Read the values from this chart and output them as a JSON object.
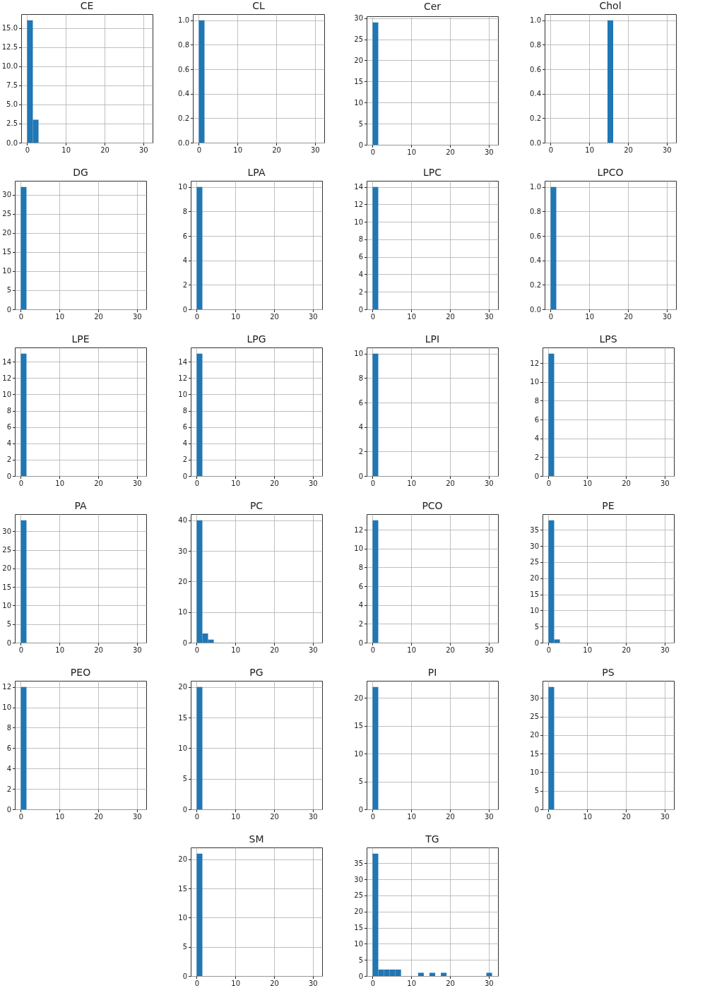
{
  "chart_data": [
    {
      "type": "histogram",
      "title": "CE",
      "bins": [
        0,
        1.47,
        2.94,
        4.41,
        5.88,
        7.35,
        8.82,
        10.29,
        11.76,
        13.23,
        14.7,
        16.17,
        17.64,
        19.11,
        20.58,
        22.05,
        23.52,
        24.99,
        26.46,
        27.93,
        29.4,
        30.87
      ],
      "values": [
        16,
        3,
        0,
        0,
        0,
        0,
        0,
        0,
        0,
        0,
        0,
        0,
        0,
        0,
        0,
        0,
        0,
        0,
        0,
        0,
        0
      ],
      "color": "#1f77b4",
      "xlim": [
        -1.54,
        32.41
      ],
      "xticks": [
        0,
        10,
        20,
        30
      ],
      "ylim": [
        0,
        16.8
      ],
      "yticks": [
        {
          "value": 0,
          "label": "0.0"
        },
        2.5,
        {
          "value": 5,
          "label": "5.0"
        },
        7.5,
        {
          "value": 10,
          "label": "10.0"
        },
        12.5,
        {
          "value": 15,
          "label": "15.0"
        }
      ],
      "grid": true
    },
    {
      "type": "histogram",
      "title": "CL",
      "bins": [
        0,
        1.47,
        2.94,
        4.41,
        5.88,
        7.35,
        8.82,
        10.29,
        11.76,
        13.23,
        14.7,
        16.17,
        17.64,
        19.11,
        20.58,
        22.05,
        23.52,
        24.99,
        26.46,
        27.93,
        29.4,
        30.87
      ],
      "values": [
        1,
        0,
        0,
        0,
        0,
        0,
        0,
        0,
        0,
        0,
        0,
        0,
        0,
        0,
        0,
        0,
        0,
        0,
        0,
        0,
        0
      ],
      "color": "#1f77b4",
      "xlim": [
        -1.54,
        32.41
      ],
      "xticks": [
        0,
        10,
        20,
        30
      ],
      "ylim": [
        0,
        1.05
      ],
      "yticks": [
        {
          "value": 0,
          "label": "0.0"
        },
        0.2,
        0.4,
        0.6,
        0.8,
        {
          "value": 1,
          "label": "1.0"
        }
      ],
      "grid": true
    },
    {
      "type": "histogram",
      "title": "Cer",
      "bins": [
        0,
        1.47,
        2.94,
        4.41,
        5.88,
        7.35,
        8.82,
        10.29,
        11.76,
        13.23,
        14.7,
        16.17,
        17.64,
        19.11,
        20.58,
        22.05,
        23.52,
        24.99,
        26.46,
        27.93,
        29.4,
        30.87
      ],
      "values": [
        29,
        0,
        0,
        0,
        0,
        0,
        0,
        0,
        0,
        0,
        0,
        0,
        0,
        0,
        0,
        0,
        0,
        0,
        0,
        0,
        0
      ],
      "color": "#1f77b4",
      "xlim": [
        -1.54,
        32.41
      ],
      "xticks": [
        0,
        10,
        20,
        30
      ],
      "ylim": [
        0,
        30.45
      ],
      "yticks": [
        0,
        5,
        10,
        15,
        20,
        25,
        30
      ],
      "grid": true
    },
    {
      "type": "histogram",
      "title": "Chol",
      "bins": [
        0,
        1.47,
        2.94,
        4.41,
        5.88,
        7.35,
        8.82,
        10.29,
        11.76,
        13.23,
        14.7,
        16.17,
        17.64,
        19.11,
        20.58,
        22.05,
        23.52,
        24.99,
        26.46,
        27.93,
        29.4,
        30.87
      ],
      "values": [
        0,
        0,
        0,
        0,
        0,
        0,
        0,
        0,
        0,
        0,
        1,
        0,
        0,
        0,
        0,
        0,
        0,
        0,
        0,
        0,
        0
      ],
      "color": "#1f77b4",
      "xlim": [
        -1.54,
        32.41
      ],
      "xticks": [
        0,
        10,
        20,
        30
      ],
      "ylim": [
        0,
        1.05
      ],
      "yticks": [
        {
          "value": 0,
          "label": "0.0"
        },
        0.2,
        0.4,
        0.6,
        0.8,
        {
          "value": 1,
          "label": "1.0"
        }
      ],
      "grid": true
    },
    {
      "type": "histogram",
      "title": "DG",
      "bins": [
        0,
        1.47,
        2.94,
        4.41,
        5.88,
        7.35,
        8.82,
        10.29,
        11.76,
        13.23,
        14.7,
        16.17,
        17.64,
        19.11,
        20.58,
        22.05,
        23.52,
        24.99,
        26.46,
        27.93,
        29.4,
        30.87
      ],
      "values": [
        32,
        0,
        0,
        0,
        0,
        0,
        0,
        0,
        0,
        0,
        0,
        0,
        0,
        0,
        0,
        0,
        0,
        0,
        0,
        0,
        0
      ],
      "color": "#1f77b4",
      "xlim": [
        -1.54,
        32.41
      ],
      "xticks": [
        0,
        10,
        20,
        30
      ],
      "ylim": [
        0,
        33.6
      ],
      "yticks": [
        0,
        5,
        10,
        15,
        20,
        25,
        30
      ],
      "grid": true
    },
    {
      "type": "histogram",
      "title": "LPA",
      "bins": [
        0,
        1.47,
        2.94,
        4.41,
        5.88,
        7.35,
        8.82,
        10.29,
        11.76,
        13.23,
        14.7,
        16.17,
        17.64,
        19.11,
        20.58,
        22.05,
        23.52,
        24.99,
        26.46,
        27.93,
        29.4,
        30.87
      ],
      "values": [
        10,
        0,
        0,
        0,
        0,
        0,
        0,
        0,
        0,
        0,
        0,
        0,
        0,
        0,
        0,
        0,
        0,
        0,
        0,
        0,
        0
      ],
      "color": "#1f77b4",
      "xlim": [
        -1.54,
        32.41
      ],
      "xticks": [
        0,
        10,
        20,
        30
      ],
      "ylim": [
        0,
        10.5
      ],
      "yticks": [
        0,
        2,
        4,
        6,
        8,
        10
      ],
      "grid": true
    },
    {
      "type": "histogram",
      "title": "LPC",
      "bins": [
        0,
        1.47,
        2.94,
        4.41,
        5.88,
        7.35,
        8.82,
        10.29,
        11.76,
        13.23,
        14.7,
        16.17,
        17.64,
        19.11,
        20.58,
        22.05,
        23.52,
        24.99,
        26.46,
        27.93,
        29.4,
        30.87
      ],
      "values": [
        14,
        0,
        0,
        0,
        0,
        0,
        0,
        0,
        0,
        0,
        0,
        0,
        0,
        0,
        0,
        0,
        0,
        0,
        0,
        0,
        0
      ],
      "color": "#1f77b4",
      "xlim": [
        -1.54,
        32.41
      ],
      "xticks": [
        0,
        10,
        20,
        30
      ],
      "ylim": [
        0,
        14.7
      ],
      "yticks": [
        0,
        2,
        4,
        6,
        8,
        10,
        12,
        14
      ],
      "grid": true
    },
    {
      "type": "histogram",
      "title": "LPCO",
      "bins": [
        0,
        1.47,
        2.94,
        4.41,
        5.88,
        7.35,
        8.82,
        10.29,
        11.76,
        13.23,
        14.7,
        16.17,
        17.64,
        19.11,
        20.58,
        22.05,
        23.52,
        24.99,
        26.46,
        27.93,
        29.4,
        30.87
      ],
      "values": [
        1,
        0,
        0,
        0,
        0,
        0,
        0,
        0,
        0,
        0,
        0,
        0,
        0,
        0,
        0,
        0,
        0,
        0,
        0,
        0,
        0
      ],
      "color": "#1f77b4",
      "xlim": [
        -1.54,
        32.41
      ],
      "xticks": [
        0,
        10,
        20,
        30
      ],
      "ylim": [
        0,
        1.05
      ],
      "yticks": [
        {
          "value": 0,
          "label": "0.0"
        },
        0.2,
        0.4,
        0.6,
        0.8,
        {
          "value": 1,
          "label": "1.0"
        }
      ],
      "grid": true
    },
    {
      "type": "histogram",
      "title": "LPE",
      "bins": [
        0,
        1.47,
        2.94,
        4.41,
        5.88,
        7.35,
        8.82,
        10.29,
        11.76,
        13.23,
        14.7,
        16.17,
        17.64,
        19.11,
        20.58,
        22.05,
        23.52,
        24.99,
        26.46,
        27.93,
        29.4,
        30.87
      ],
      "values": [
        15,
        0,
        0,
        0,
        0,
        0,
        0,
        0,
        0,
        0,
        0,
        0,
        0,
        0,
        0,
        0,
        0,
        0,
        0,
        0,
        0
      ],
      "color": "#1f77b4",
      "xlim": [
        -1.54,
        32.41
      ],
      "xticks": [
        0,
        10,
        20,
        30
      ],
      "ylim": [
        0,
        15.75
      ],
      "yticks": [
        0,
        2,
        4,
        6,
        8,
        10,
        12,
        14
      ],
      "grid": true
    },
    {
      "type": "histogram",
      "title": "LPG",
      "bins": [
        0,
        1.47,
        2.94,
        4.41,
        5.88,
        7.35,
        8.82,
        10.29,
        11.76,
        13.23,
        14.7,
        16.17,
        17.64,
        19.11,
        20.58,
        22.05,
        23.52,
        24.99,
        26.46,
        27.93,
        29.4,
        30.87
      ],
      "values": [
        15,
        0,
        0,
        0,
        0,
        0,
        0,
        0,
        0,
        0,
        0,
        0,
        0,
        0,
        0,
        0,
        0,
        0,
        0,
        0,
        0
      ],
      "color": "#1f77b4",
      "xlim": [
        -1.54,
        32.41
      ],
      "xticks": [
        0,
        10,
        20,
        30
      ],
      "ylim": [
        0,
        15.75
      ],
      "yticks": [
        0,
        2,
        4,
        6,
        8,
        10,
        12,
        14
      ],
      "grid": true
    },
    {
      "type": "histogram",
      "title": "LPI",
      "bins": [
        0,
        1.47,
        2.94,
        4.41,
        5.88,
        7.35,
        8.82,
        10.29,
        11.76,
        13.23,
        14.7,
        16.17,
        17.64,
        19.11,
        20.58,
        22.05,
        23.52,
        24.99,
        26.46,
        27.93,
        29.4,
        30.87
      ],
      "values": [
        10,
        0,
        0,
        0,
        0,
        0,
        0,
        0,
        0,
        0,
        0,
        0,
        0,
        0,
        0,
        0,
        0,
        0,
        0,
        0,
        0
      ],
      "color": "#1f77b4",
      "xlim": [
        -1.54,
        32.41
      ],
      "xticks": [
        0,
        10,
        20,
        30
      ],
      "ylim": [
        0,
        10.5
      ],
      "yticks": [
        0,
        2,
        4,
        6,
        8,
        10
      ],
      "grid": true
    },
    {
      "type": "histogram",
      "title": "LPS",
      "bins": [
        0,
        1.47,
        2.94,
        4.41,
        5.88,
        7.35,
        8.82,
        10.29,
        11.76,
        13.23,
        14.7,
        16.17,
        17.64,
        19.11,
        20.58,
        22.05,
        23.52,
        24.99,
        26.46,
        27.93,
        29.4,
        30.87
      ],
      "values": [
        13,
        0,
        0,
        0,
        0,
        0,
        0,
        0,
        0,
        0,
        0,
        0,
        0,
        0,
        0,
        0,
        0,
        0,
        0,
        0,
        0
      ],
      "color": "#1f77b4",
      "xlim": [
        -1.54,
        32.41
      ],
      "xticks": [
        0,
        10,
        20,
        30
      ],
      "ylim": [
        0,
        13.65
      ],
      "yticks": [
        0,
        2,
        4,
        6,
        8,
        10,
        12
      ],
      "grid": true
    },
    {
      "type": "histogram",
      "title": "PA",
      "bins": [
        0,
        1.47,
        2.94,
        4.41,
        5.88,
        7.35,
        8.82,
        10.29,
        11.76,
        13.23,
        14.7,
        16.17,
        17.64,
        19.11,
        20.58,
        22.05,
        23.52,
        24.99,
        26.46,
        27.93,
        29.4,
        30.87
      ],
      "values": [
        33,
        0,
        0,
        0,
        0,
        0,
        0,
        0,
        0,
        0,
        0,
        0,
        0,
        0,
        0,
        0,
        0,
        0,
        0,
        0,
        0
      ],
      "color": "#1f77b4",
      "xlim": [
        -1.54,
        32.41
      ],
      "xticks": [
        0,
        10,
        20,
        30
      ],
      "ylim": [
        0,
        34.65
      ],
      "yticks": [
        0,
        5,
        10,
        15,
        20,
        25,
        30
      ],
      "grid": true
    },
    {
      "type": "histogram",
      "title": "PC",
      "bins": [
        0,
        1.47,
        2.94,
        4.41,
        5.88,
        7.35,
        8.82,
        10.29,
        11.76,
        13.23,
        14.7,
        16.17,
        17.64,
        19.11,
        20.58,
        22.05,
        23.52,
        24.99,
        26.46,
        27.93,
        29.4,
        30.87
      ],
      "values": [
        40,
        3,
        1,
        0,
        0,
        0,
        0,
        0,
        0,
        0,
        0,
        0,
        0,
        0,
        0,
        0,
        0,
        0,
        0,
        0,
        0
      ],
      "color": "#1f77b4",
      "xlim": [
        -1.54,
        32.41
      ],
      "xticks": [
        0,
        10,
        20,
        30
      ],
      "ylim": [
        0,
        42
      ],
      "yticks": [
        0,
        10,
        20,
        30,
        40
      ],
      "grid": true
    },
    {
      "type": "histogram",
      "title": "PCO",
      "bins": [
        0,
        1.47,
        2.94,
        4.41,
        5.88,
        7.35,
        8.82,
        10.29,
        11.76,
        13.23,
        14.7,
        16.17,
        17.64,
        19.11,
        20.58,
        22.05,
        23.52,
        24.99,
        26.46,
        27.93,
        29.4,
        30.87
      ],
      "values": [
        13,
        0,
        0,
        0,
        0,
        0,
        0,
        0,
        0,
        0,
        0,
        0,
        0,
        0,
        0,
        0,
        0,
        0,
        0,
        0,
        0
      ],
      "color": "#1f77b4",
      "xlim": [
        -1.54,
        32.41
      ],
      "xticks": [
        0,
        10,
        20,
        30
      ],
      "ylim": [
        0,
        13.65
      ],
      "yticks": [
        0,
        2,
        4,
        6,
        8,
        10,
        12
      ],
      "grid": true
    },
    {
      "type": "histogram",
      "title": "PE",
      "bins": [
        0,
        1.47,
        2.94,
        4.41,
        5.88,
        7.35,
        8.82,
        10.29,
        11.76,
        13.23,
        14.7,
        16.17,
        17.64,
        19.11,
        20.58,
        22.05,
        23.52,
        24.99,
        26.46,
        27.93,
        29.4,
        30.87
      ],
      "values": [
        38,
        1,
        0,
        0,
        0,
        0,
        0,
        0,
        0,
        0,
        0,
        0,
        0,
        0,
        0,
        0,
        0,
        0,
        0,
        0,
        0
      ],
      "color": "#1f77b4",
      "xlim": [
        -1.54,
        32.41
      ],
      "xticks": [
        0,
        10,
        20,
        30
      ],
      "ylim": [
        0,
        39.9
      ],
      "yticks": [
        0,
        5,
        10,
        15,
        20,
        25,
        30,
        35
      ],
      "grid": true
    },
    {
      "type": "histogram",
      "title": "PEO",
      "bins": [
        0,
        1.47,
        2.94,
        4.41,
        5.88,
        7.35,
        8.82,
        10.29,
        11.76,
        13.23,
        14.7,
        16.17,
        17.64,
        19.11,
        20.58,
        22.05,
        23.52,
        24.99,
        26.46,
        27.93,
        29.4,
        30.87
      ],
      "values": [
        12,
        0,
        0,
        0,
        0,
        0,
        0,
        0,
        0,
        0,
        0,
        0,
        0,
        0,
        0,
        0,
        0,
        0,
        0,
        0,
        0
      ],
      "color": "#1f77b4",
      "xlim": [
        -1.54,
        32.41
      ],
      "xticks": [
        0,
        10,
        20,
        30
      ],
      "ylim": [
        0,
        12.6
      ],
      "yticks": [
        0,
        2,
        4,
        6,
        8,
        10,
        12
      ],
      "grid": true
    },
    {
      "type": "histogram",
      "title": "PG",
      "bins": [
        0,
        1.47,
        2.94,
        4.41,
        5.88,
        7.35,
        8.82,
        10.29,
        11.76,
        13.23,
        14.7,
        16.17,
        17.64,
        19.11,
        20.58,
        22.05,
        23.52,
        24.99,
        26.46,
        27.93,
        29.4,
        30.87
      ],
      "values": [
        20,
        0,
        0,
        0,
        0,
        0,
        0,
        0,
        0,
        0,
        0,
        0,
        0,
        0,
        0,
        0,
        0,
        0,
        0,
        0,
        0
      ],
      "color": "#1f77b4",
      "xlim": [
        -1.54,
        32.41
      ],
      "xticks": [
        0,
        10,
        20,
        30
      ],
      "ylim": [
        0,
        21
      ],
      "yticks": [
        0,
        5,
        10,
        15,
        20
      ],
      "grid": true
    },
    {
      "type": "histogram",
      "title": "PI",
      "bins": [
        0,
        1.47,
        2.94,
        4.41,
        5.88,
        7.35,
        8.82,
        10.29,
        11.76,
        13.23,
        14.7,
        16.17,
        17.64,
        19.11,
        20.58,
        22.05,
        23.52,
        24.99,
        26.46,
        27.93,
        29.4,
        30.87
      ],
      "values": [
        22,
        0,
        0,
        0,
        0,
        0,
        0,
        0,
        0,
        0,
        0,
        0,
        0,
        0,
        0,
        0,
        0,
        0,
        0,
        0,
        0
      ],
      "color": "#1f77b4",
      "xlim": [
        -1.54,
        32.41
      ],
      "xticks": [
        0,
        10,
        20,
        30
      ],
      "ylim": [
        0,
        23.1
      ],
      "yticks": [
        0,
        5,
        10,
        15,
        20
      ],
      "grid": true
    },
    {
      "type": "histogram",
      "title": "PS",
      "bins": [
        0,
        1.47,
        2.94,
        4.41,
        5.88,
        7.35,
        8.82,
        10.29,
        11.76,
        13.23,
        14.7,
        16.17,
        17.64,
        19.11,
        20.58,
        22.05,
        23.52,
        24.99,
        26.46,
        27.93,
        29.4,
        30.87
      ],
      "values": [
        33,
        0,
        0,
        0,
        0,
        0,
        0,
        0,
        0,
        0,
        0,
        0,
        0,
        0,
        0,
        0,
        0,
        0,
        0,
        0,
        0
      ],
      "color": "#1f77b4",
      "xlim": [
        -1.54,
        32.41
      ],
      "xticks": [
        0,
        10,
        20,
        30
      ],
      "ylim": [
        0,
        34.65
      ],
      "yticks": [
        0,
        5,
        10,
        15,
        20,
        25,
        30
      ],
      "grid": true
    },
    {
      "type": "histogram",
      "title": "SM",
      "bins": [
        0,
        1.47,
        2.94,
        4.41,
        5.88,
        7.35,
        8.82,
        10.29,
        11.76,
        13.23,
        14.7,
        16.17,
        17.64,
        19.11,
        20.58,
        22.05,
        23.52,
        24.99,
        26.46,
        27.93,
        29.4,
        30.87
      ],
      "values": [
        21,
        0,
        0,
        0,
        0,
        0,
        0,
        0,
        0,
        0,
        0,
        0,
        0,
        0,
        0,
        0,
        0,
        0,
        0,
        0,
        0
      ],
      "color": "#1f77b4",
      "xlim": [
        -1.54,
        32.41
      ],
      "xticks": [
        0,
        10,
        20,
        30
      ],
      "ylim": [
        0,
        22.05
      ],
      "yticks": [
        0,
        5,
        10,
        15,
        20
      ],
      "grid": true
    },
    {
      "type": "histogram",
      "title": "TG",
      "bins": [
        0,
        1.47,
        2.94,
        4.41,
        5.88,
        7.35,
        8.82,
        10.29,
        11.76,
        13.23,
        14.7,
        16.17,
        17.64,
        19.11,
        20.58,
        22.05,
        23.52,
        24.99,
        26.46,
        27.93,
        29.4,
        30.87
      ],
      "values": [
        38,
        2,
        2,
        2,
        2,
        0,
        0,
        0,
        1,
        0,
        1,
        0,
        1,
        0,
        0,
        0,
        0,
        0,
        0,
        0,
        1
      ],
      "color": "#1f77b4",
      "xlim": [
        -1.54,
        32.41
      ],
      "xticks": [
        0,
        10,
        20,
        30
      ],
      "ylim": [
        0,
        39.9
      ],
      "yticks": [
        0,
        5,
        10,
        15,
        20,
        25,
        30,
        35
      ],
      "grid": true
    }
  ]
}
